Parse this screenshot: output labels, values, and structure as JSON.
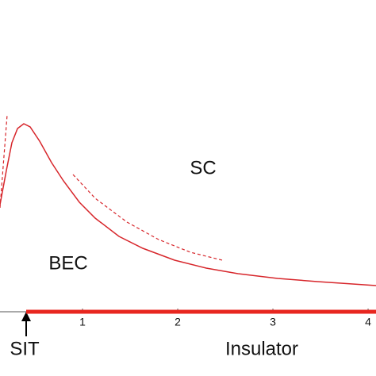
{
  "chart_data": {
    "type": "line",
    "xlim": [
      0.133,
      4.083
    ],
    "xticks": [
      1,
      2,
      3,
      4
    ],
    "ylim": [
      0,
      3.275
    ],
    "series": [
      {
        "color": "#d7262b",
        "dashed": false,
        "width": 1.5,
        "x": [
          0.133,
          0.2,
          0.258,
          0.317,
          0.383,
          0.45,
          0.55,
          0.675,
          0.8,
          0.967,
          1.133,
          1.383,
          1.633,
          1.967,
          2.3,
          2.633,
          3.05,
          3.467,
          4.083
        ],
        "values": [
          1.125,
          1.483,
          1.775,
          1.925,
          1.975,
          1.942,
          1.792,
          1.567,
          1.375,
          1.15,
          0.983,
          0.792,
          0.667,
          0.542,
          0.458,
          0.4,
          0.35,
          0.317,
          0.275
        ]
      },
      {
        "color": "#d7262b",
        "dashed": true,
        "width": 1.2,
        "x": [
          0.133,
          0.208
        ],
        "values": [
          1.092,
          2.067
        ]
      },
      {
        "color": "#d7262b",
        "dashed": true,
        "width": 1.2,
        "x": [
          0.9,
          1.133,
          1.467,
          1.8,
          2.133,
          2.467
        ],
        "values": [
          1.442,
          1.192,
          0.942,
          0.758,
          0.625,
          0.542
        ]
      },
      {
        "color": "#e8261f",
        "dashed": false,
        "width": 5,
        "x": [
          0.408,
          4.083
        ],
        "values": [
          0,
          0
        ]
      }
    ],
    "annotations": [
      "SC",
      "BEC",
      "SIT",
      "Insulator"
    ]
  }
}
